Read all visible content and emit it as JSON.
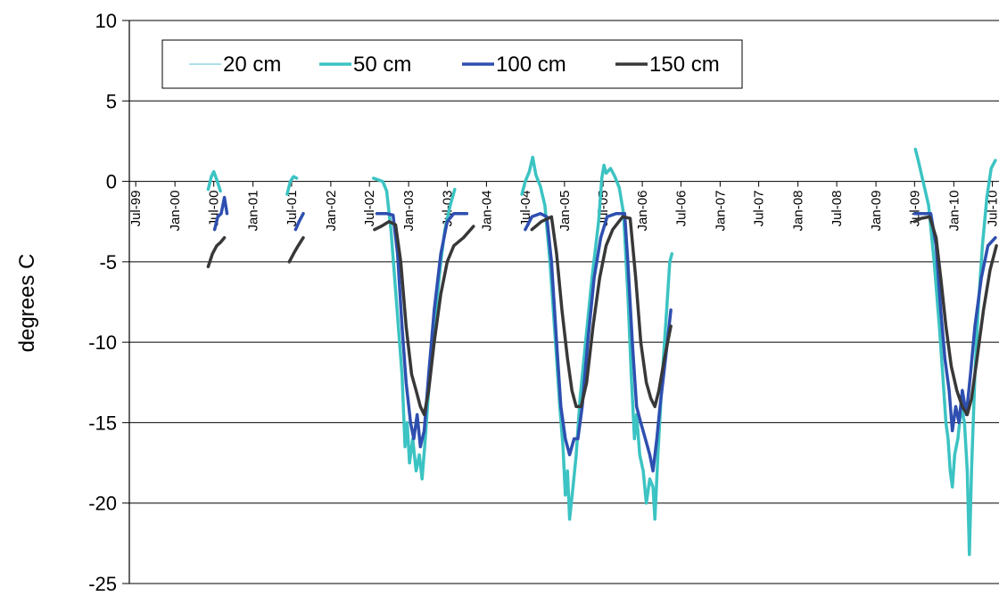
{
  "chart_data": {
    "type": "line",
    "xlabel": "",
    "ylabel": "degrees C",
    "ylim": [
      -25,
      10
    ],
    "yticks": [
      "10",
      "5",
      "0",
      "-5",
      "-10",
      "-15",
      "-20",
      "-25"
    ],
    "x_ticks": [
      "Jul-99",
      "Jan-00",
      "Jul-00",
      "Jan-01",
      "Jul-01",
      "Jan-02",
      "Jul-02",
      "Jan-03",
      "Jul-03",
      "Jan-04",
      "Jul-04",
      "Jan-05",
      "Jul-05",
      "Jan-06",
      "Jul-06",
      "Jan-07",
      "Jul-07",
      "Jan-08",
      "Jul-08",
      "Jan-09",
      "Jul-09",
      "Jan-10",
      "Jul-10"
    ],
    "x_range": [
      "1999-06-01",
      "2010-08-01"
    ],
    "grid": "horizontal",
    "legend": "top-left",
    "series": [
      {
        "name": "20 cm",
        "color": "#8fd6e0",
        "width": 1.5,
        "points": [
          [
            "2000-07-15",
            0.2
          ],
          [
            "2000-07-25",
            -0.3
          ]
        ]
      },
      {
        "name": "50 cm",
        "color": "#3cc3c3",
        "width": 3.5,
        "segments": [
          [
            [
              "2000-06-05",
              -0.5
            ],
            [
              "2000-06-20",
              0.3
            ],
            [
              "2000-07-01",
              0.6
            ],
            [
              "2000-07-15",
              0.1
            ],
            [
              "2000-08-01",
              -0.6
            ]
          ],
          [
            [
              "2001-06-10",
              -0.8
            ],
            [
              "2001-06-25",
              0.0
            ],
            [
              "2001-07-10",
              0.3
            ],
            [
              "2001-07-25",
              0.2
            ]
          ],
          [
            [
              "2002-07-20",
              0.2
            ],
            [
              "2002-08-10",
              0.1
            ],
            [
              "2002-09-01",
              0.0
            ],
            [
              "2002-09-20",
              -0.6
            ],
            [
              "2002-10-10",
              -3.0
            ],
            [
              "2002-11-05",
              -7.5
            ],
            [
              "2002-12-01",
              -12.0
            ],
            [
              "2002-12-15",
              -16.5
            ],
            [
              "2002-12-25",
              -15.0
            ],
            [
              "2003-01-05",
              -17.5
            ],
            [
              "2003-01-20",
              -16.0
            ],
            [
              "2003-02-05",
              -18.0
            ],
            [
              "2003-02-20",
              -17.0
            ],
            [
              "2003-03-05",
              -18.5
            ],
            [
              "2003-03-20",
              -16.0
            ],
            [
              "2003-04-10",
              -12.0
            ],
            [
              "2003-05-01",
              -9.0
            ],
            [
              "2003-06-01",
              -5.0
            ],
            [
              "2003-06-20",
              -3.0
            ],
            [
              "2003-07-15",
              -1.5
            ],
            [
              "2003-08-05",
              -0.5
            ]
          ],
          [
            [
              "2004-06-15",
              -0.8
            ],
            [
              "2004-07-01",
              0.0
            ],
            [
              "2004-07-20",
              0.6
            ],
            [
              "2004-08-05",
              1.5
            ],
            [
              "2004-08-20",
              0.4
            ],
            [
              "2004-09-10",
              -0.3
            ],
            [
              "2004-10-01",
              -1.5
            ],
            [
              "2004-10-25",
              -5.0
            ],
            [
              "2004-11-20",
              -10.0
            ],
            [
              "2004-12-10",
              -14.0
            ],
            [
              "2004-12-25",
              -16.5
            ],
            [
              "2005-01-05",
              -19.5
            ],
            [
              "2005-01-15",
              -18.0
            ],
            [
              "2005-01-25",
              -21.0
            ],
            [
              "2005-02-10",
              -19.0
            ],
            [
              "2005-02-25",
              -17.0
            ],
            [
              "2005-03-15",
              -13.5
            ],
            [
              "2005-04-10",
              -10.0
            ],
            [
              "2005-05-10",
              -6.0
            ],
            [
              "2005-06-10",
              -2.5
            ],
            [
              "2005-06-25",
              0.2
            ],
            [
              "2005-07-05",
              1.0
            ],
            [
              "2005-07-15",
              0.5
            ],
            [
              "2005-08-05",
              0.8
            ],
            [
              "2005-08-25",
              0.3
            ],
            [
              "2005-09-15",
              -0.4
            ],
            [
              "2005-10-05",
              -2.0
            ],
            [
              "2005-10-25",
              -7.0
            ],
            [
              "2005-11-10",
              -12.0
            ],
            [
              "2005-11-25",
              -16.0
            ],
            [
              "2005-12-05",
              -14.5
            ],
            [
              "2005-12-20",
              -17.0
            ],
            [
              "2006-01-05",
              -18.0
            ],
            [
              "2006-01-20",
              -20.0
            ],
            [
              "2006-02-05",
              -18.5
            ],
            [
              "2006-02-20",
              -19.0
            ],
            [
              "2006-03-01",
              -21.0
            ],
            [
              "2006-03-15",
              -17.0
            ],
            [
              "2006-04-05",
              -12.0
            ],
            [
              "2006-04-25",
              -8.0
            ],
            [
              "2006-05-10",
              -5.0
            ],
            [
              "2006-05-20",
              -4.5
            ]
          ],
          [
            [
              "2009-07-05",
              2.0
            ],
            [
              "2009-07-20",
              1.2
            ],
            [
              "2009-08-10",
              0.0
            ],
            [
              "2009-09-05",
              -1.5
            ],
            [
              "2009-10-01",
              -5.0
            ],
            [
              "2009-10-25",
              -9.0
            ],
            [
              "2009-11-10",
              -12.0
            ],
            [
              "2009-11-25",
              -15.0
            ],
            [
              "2009-12-05",
              -16.0
            ],
            [
              "2009-12-15",
              -18.0
            ],
            [
              "2009-12-25",
              -19.0
            ],
            [
              "2010-01-05",
              -17.0
            ],
            [
              "2010-01-20",
              -16.0
            ],
            [
              "2010-02-05",
              -14.0
            ],
            [
              "2010-02-20",
              -15.0
            ],
            [
              "2010-03-05",
              -18.0
            ],
            [
              "2010-03-15",
              -23.2
            ],
            [
              "2010-03-25",
              -18.0
            ],
            [
              "2010-04-10",
              -12.0
            ],
            [
              "2010-04-25",
              -8.0
            ],
            [
              "2010-05-15",
              -4.0
            ],
            [
              "2010-06-05",
              -1.0
            ],
            [
              "2010-06-25",
              0.8
            ],
            [
              "2010-07-15",
              1.3
            ]
          ]
        ]
      },
      {
        "name": "100 cm",
        "color": "#2e4fb0",
        "width": 3.5,
        "segments": [
          [
            [
              "2000-07-05",
              -3.0
            ],
            [
              "2000-07-20",
              -2.2
            ],
            [
              "2000-08-05",
              -2.0
            ],
            [
              "2000-08-20",
              -1.0
            ],
            [
              "2000-09-01",
              -2.0
            ]
          ],
          [
            [
              "2001-07-20",
              -3.0
            ],
            [
              "2001-08-05",
              -2.5
            ],
            [
              "2001-08-25",
              -2.0
            ]
          ],
          [
            [
              "2002-08-05",
              -2.0
            ],
            [
              "2002-09-20",
              -2.0
            ],
            [
              "2002-10-20",
              -2.1
            ],
            [
              "2002-11-10",
              -4.5
            ],
            [
              "2002-12-01",
              -9.0
            ],
            [
              "2002-12-20",
              -12.5
            ],
            [
              "2003-01-10",
              -15.0
            ],
            [
              "2003-01-25",
              -16.0
            ],
            [
              "2003-02-10",
              -14.5
            ],
            [
              "2003-02-25",
              -16.5
            ],
            [
              "2003-03-15",
              -15.5
            ],
            [
              "2003-04-05",
              -12.0
            ],
            [
              "2003-05-01",
              -8.0
            ],
            [
              "2003-06-01",
              -4.5
            ],
            [
              "2003-07-01",
              -2.5
            ],
            [
              "2003-08-01",
              -2.0
            ],
            [
              "2003-10-01",
              -2.0
            ]
          ],
          [
            [
              "2004-07-01",
              -3.0
            ],
            [
              "2004-08-01",
              -2.2
            ],
            [
              "2004-09-10",
              -2.0
            ],
            [
              "2004-10-10",
              -2.2
            ],
            [
              "2004-11-01",
              -5.0
            ],
            [
              "2004-11-25",
              -10.0
            ],
            [
              "2004-12-15",
              -14.0
            ],
            [
              "2005-01-05",
              -16.0
            ],
            [
              "2005-01-25",
              -17.0
            ],
            [
              "2005-02-15",
              -16.0
            ],
            [
              "2005-03-05",
              -16.0
            ],
            [
              "2005-03-25",
              -14.0
            ],
            [
              "2005-04-20",
              -10.0
            ],
            [
              "2005-05-20",
              -6.0
            ],
            [
              "2005-06-20",
              -3.5
            ],
            [
              "2005-07-20",
              -2.2
            ],
            [
              "2005-09-01",
              -2.0
            ],
            [
              "2005-10-10",
              -2.0
            ],
            [
              "2005-10-25",
              -5.0
            ],
            [
              "2005-11-15",
              -10.0
            ],
            [
              "2005-12-05",
              -14.0
            ],
            [
              "2005-12-25",
              -15.0
            ],
            [
              "2006-01-15",
              -16.0
            ],
            [
              "2006-02-05",
              -17.0
            ],
            [
              "2006-02-20",
              -18.0
            ],
            [
              "2006-03-10",
              -16.0
            ],
            [
              "2006-03-25",
              -14.0
            ],
            [
              "2006-04-20",
              -11.0
            ],
            [
              "2006-05-15",
              -8.0
            ]
          ],
          [
            [
              "2009-07-01",
              -2.0
            ],
            [
              "2009-08-01",
              -2.0
            ],
            [
              "2009-09-15",
              -2.0
            ],
            [
              "2009-10-10",
              -4.0
            ],
            [
              "2009-11-01",
              -8.0
            ],
            [
              "2009-11-20",
              -11.0
            ],
            [
              "2009-12-10",
              -13.0
            ],
            [
              "2009-12-25",
              -15.5
            ],
            [
              "2010-01-10",
              -14.0
            ],
            [
              "2010-01-25",
              -15.0
            ],
            [
              "2010-02-10",
              -13.0
            ],
            [
              "2010-03-01",
              -14.5
            ],
            [
              "2010-03-20",
              -12.0
            ],
            [
              "2010-04-10",
              -9.0
            ],
            [
              "2010-05-10",
              -6.0
            ],
            [
              "2010-06-10",
              -4.0
            ],
            [
              "2010-07-15",
              -3.5
            ]
          ]
        ]
      },
      {
        "name": "150 cm",
        "color": "#383838",
        "width": 3.5,
        "segments": [
          [
            [
              "2000-06-05",
              -5.3
            ],
            [
              "2000-06-25",
              -4.5
            ],
            [
              "2000-07-15",
              -4.0
            ],
            [
              "2000-08-01",
              -3.8
            ],
            [
              "2000-08-20",
              -3.5
            ]
          ],
          [
            [
              "2001-06-20",
              -5.0
            ],
            [
              "2001-07-10",
              -4.5
            ],
            [
              "2001-08-01",
              -4.0
            ],
            [
              "2001-08-25",
              -3.5
            ]
          ],
          [
            [
              "2002-07-25",
              -3.0
            ],
            [
              "2002-08-25",
              -2.8
            ],
            [
              "2002-10-01",
              -2.5
            ],
            [
              "2002-11-01",
              -2.7
            ],
            [
              "2002-11-25",
              -5.0
            ],
            [
              "2002-12-20",
              -9.0
            ],
            [
              "2003-01-15",
              -12.0
            ],
            [
              "2003-02-05",
              -13.0
            ],
            [
              "2003-02-25",
              -14.0
            ],
            [
              "2003-03-15",
              -14.5
            ],
            [
              "2003-04-05",
              -13.0
            ],
            [
              "2003-05-01",
              -10.0
            ],
            [
              "2003-06-01",
              -7.0
            ],
            [
              "2003-07-01",
              -5.0
            ],
            [
              "2003-08-01",
              -4.0
            ],
            [
              "2003-09-15",
              -3.5
            ],
            [
              "2003-11-01",
              -2.8
            ]
          ],
          [
            [
              "2004-08-01",
              -3.0
            ],
            [
              "2004-09-15",
              -2.5
            ],
            [
              "2004-11-01",
              -2.2
            ],
            [
              "2004-11-25",
              -4.5
            ],
            [
              "2004-12-20",
              -8.0
            ],
            [
              "2005-01-15",
              -11.0
            ],
            [
              "2005-02-05",
              -13.0
            ],
            [
              "2005-02-25",
              -14.0
            ],
            [
              "2005-03-20",
              -14.0
            ],
            [
              "2005-04-15",
              -12.5
            ],
            [
              "2005-05-15",
              -9.0
            ],
            [
              "2005-06-15",
              -6.0
            ],
            [
              "2005-07-15",
              -4.0
            ],
            [
              "2005-08-15",
              -3.0
            ],
            [
              "2005-10-01",
              -2.2
            ],
            [
              "2005-11-05",
              -2.3
            ],
            [
              "2005-12-01",
              -6.0
            ],
            [
              "2005-12-25",
              -10.0
            ],
            [
              "2006-01-20",
              -12.5
            ],
            [
              "2006-02-10",
              -13.5
            ],
            [
              "2006-03-01",
              -14.0
            ],
            [
              "2006-03-20",
              -13.0
            ],
            [
              "2006-04-15",
              -11.0
            ],
            [
              "2006-05-15",
              -9.0
            ]
          ],
          [
            [
              "2009-07-01",
              -2.5
            ],
            [
              "2009-08-01",
              -2.3
            ],
            [
              "2009-09-10",
              -2.2
            ],
            [
              "2009-10-10",
              -3.5
            ],
            [
              "2009-11-01",
              -6.0
            ],
            [
              "2009-11-25",
              -9.0
            ],
            [
              "2009-12-20",
              -11.5
            ],
            [
              "2010-01-15",
              -13.0
            ],
            [
              "2010-02-10",
              -14.0
            ],
            [
              "2010-03-05",
              -14.5
            ],
            [
              "2010-03-25",
              -13.5
            ],
            [
              "2010-04-20",
              -11.0
            ],
            [
              "2010-05-20",
              -8.0
            ],
            [
              "2010-06-20",
              -5.5
            ],
            [
              "2010-07-20",
              -4.0
            ]
          ]
        ]
      }
    ]
  }
}
